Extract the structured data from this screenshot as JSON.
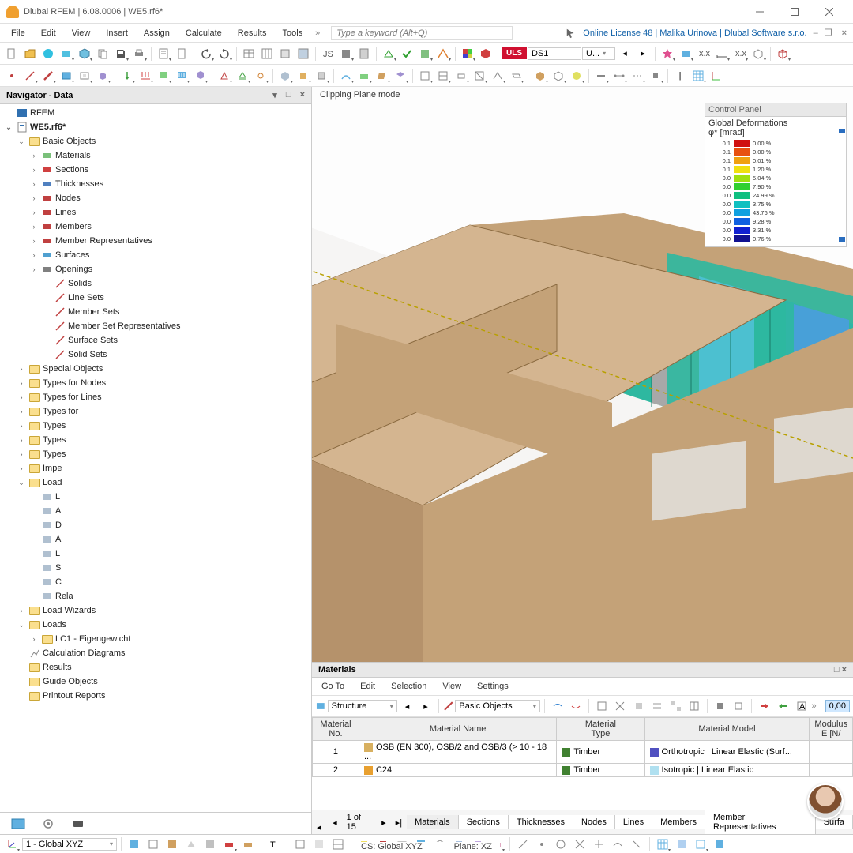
{
  "title": "Dlubal RFEM | 6.08.0006 | WE5.rf6*",
  "license_text": "Online License 48 | Malika Urinova | Dlubal Software s.r.o.",
  "search_placeholder": "Type a keyword (Alt+Q)",
  "menus": [
    "File",
    "Edit",
    "View",
    "Insert",
    "Assign",
    "Calculate",
    "Results",
    "Tools"
  ],
  "navigator": {
    "title": "Navigator - Data",
    "root": "RFEM",
    "file": "WE5.rf6*",
    "basic_objects": "Basic Objects",
    "items": [
      {
        "label": "Materials",
        "iconColor": "#7ac07a"
      },
      {
        "label": "Sections",
        "iconColor": "#d04040"
      },
      {
        "label": "Thicknesses",
        "iconColor": "#5080c0"
      },
      {
        "label": "Nodes",
        "iconColor": "#c04040"
      },
      {
        "label": "Lines",
        "iconColor": "#c04040"
      },
      {
        "label": "Members",
        "iconColor": "#c04040"
      },
      {
        "label": "Member Representatives",
        "iconColor": "#c04040"
      },
      {
        "label": "Surfaces",
        "iconColor": "#50a0d0"
      },
      {
        "label": "Openings",
        "iconColor": "#808080"
      }
    ],
    "sets": [
      "Solids",
      "Line Sets",
      "Member Sets",
      "Member Set Representatives",
      "Surface Sets",
      "Solid Sets"
    ],
    "mid": [
      "Special Objects",
      "Types for Nodes",
      "Types for Lines",
      "Types for",
      "Types",
      "Types",
      "Types",
      "Impe",
      "Load"
    ],
    "load_sub": [
      "L",
      "A",
      "D",
      "A",
      "L",
      "S",
      "C",
      "Rela"
    ],
    "after": [
      "Load Wizards"
    ],
    "loads": "Loads",
    "lc1": "LC1 - Eigengewicht",
    "tail": [
      "Calculation Diagrams",
      "Results",
      "Guide Objects",
      "Printout Reports"
    ]
  },
  "viewport_label": "Clipping Plane mode",
  "control_panel": {
    "title": "Control Panel",
    "sub": "Global Deformations",
    "unit": "φ* [mrad]",
    "rows": [
      {
        "v": "0.1",
        "c": "#d01010",
        "p": "0.00 %"
      },
      {
        "v": "0.1",
        "c": "#e85010",
        "p": "0.00 %"
      },
      {
        "v": "0.1",
        "c": "#f0a010",
        "p": "0.01 %"
      },
      {
        "v": "0.1",
        "c": "#f0e010",
        "p": "1.20 %"
      },
      {
        "v": "0.0",
        "c": "#a0e010",
        "p": "5.04 %"
      },
      {
        "v": "0.0",
        "c": "#30d030",
        "p": "7.90 %"
      },
      {
        "v": "0.0",
        "c": "#10c080",
        "p": "24.99 %"
      },
      {
        "v": "0.0",
        "c": "#10c0c0",
        "p": "3.75 %"
      },
      {
        "v": "0.0",
        "c": "#10a0e0",
        "p": "43.76 %"
      },
      {
        "v": "0.0",
        "c": "#1060e0",
        "p": "9.28 %"
      },
      {
        "v": "0.0",
        "c": "#1020d0",
        "p": "3.31 %"
      },
      {
        "v": "0.0",
        "c": "#101090",
        "p": "0.76 %"
      }
    ]
  },
  "materials": {
    "title": "Materials",
    "menus": [
      "Go To",
      "Edit",
      "Selection",
      "View",
      "Settings"
    ],
    "combo1": "Structure",
    "combo2": "Basic Objects",
    "headers": {
      "no": "Material\nNo.",
      "name": "Material Name",
      "type": "Material\nType",
      "model": "Material Model",
      "modulus": "Modulus\nE [N/"
    },
    "rows": [
      {
        "no": "1",
        "name": "OSB (EN 300), OSB/2 and OSB/3 (> 10 - 18 ...",
        "swatch": "#d8b060",
        "type": "Timber",
        "tswatch": "#408030",
        "model": "Orthotropic | Linear Elastic (Surf...",
        "mswatch": "#5050c0"
      },
      {
        "no": "2",
        "name": "C24",
        "swatch": "#e8a030",
        "type": "Timber",
        "tswatch": "#408030",
        "model": "Isotropic | Linear Elastic",
        "mswatch": "#b0e0f0"
      }
    ],
    "page": "1 of 15",
    "tabs": [
      "Materials",
      "Sections",
      "Thicknesses",
      "Nodes",
      "Lines",
      "Members",
      "Member Representatives",
      "Surfa"
    ]
  },
  "toolbar_uls": "ULS",
  "toolbar_ds": "DS1",
  "toolbar_u": "U...",
  "bottom": {
    "cs_combo": "1 - Global XYZ",
    "status_cs": "CS: Global XYZ",
    "status_plane": "Plane: XZ"
  },
  "colors": {
    "clip_border": "#b8a000",
    "timber": "#c4a278",
    "timber_dark": "#a8875f",
    "timber_light": "#d4b590",
    "fea1": "#2eb8a0",
    "fea2": "#4cc0d0",
    "fea3": "#48a0d8",
    "fea4": "#a8a8a8"
  }
}
